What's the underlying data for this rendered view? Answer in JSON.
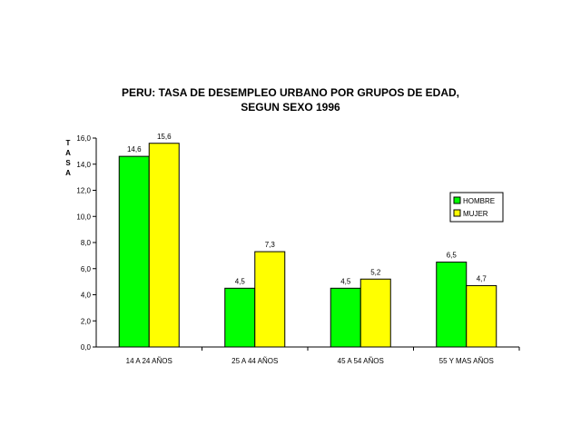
{
  "chart_data": {
    "type": "bar",
    "title_lines": [
      "PERU: TASA DE DESEMPLEO URBANO POR GRUPOS DE EDAD,",
      "SEGUN SEXO 1996"
    ],
    "ylabel": "TASA",
    "xlabel": "",
    "ylim": [
      0,
      16
    ],
    "yticks": [
      "0,0",
      "2,0",
      "4,0",
      "6,0",
      "8,0",
      "10,0",
      "12,0",
      "14,0",
      "16,0"
    ],
    "categories": [
      "14 A 24 AÑOS",
      "25 A 44 AÑOS",
      "45 A 54 AÑOS",
      "55 Y MAS AÑOS"
    ],
    "series": [
      {
        "name": "HOMBRE",
        "color": "#00ff00",
        "values": [
          14.6,
          4.5,
          4.5,
          6.5
        ],
        "labels": [
          "14,6",
          "4,5",
          "4,5",
          "6,5"
        ]
      },
      {
        "name": "MUJER",
        "color": "#ffff00",
        "values": [
          15.6,
          7.3,
          5.2,
          4.7
        ],
        "labels": [
          "15,6",
          "7,3",
          "5,2",
          "4,7"
        ]
      }
    ],
    "grid": false,
    "legend_position": "right"
  }
}
